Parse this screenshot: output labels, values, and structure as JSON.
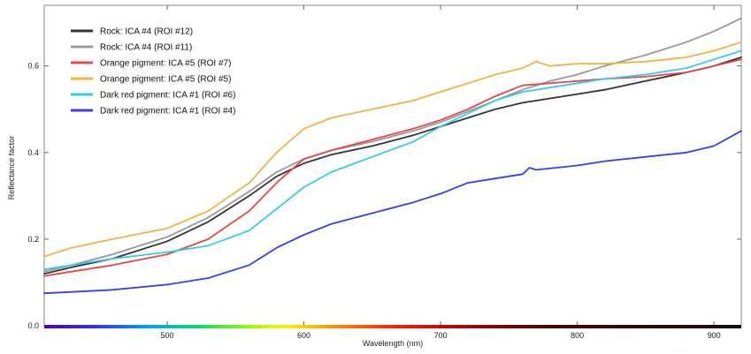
{
  "chart_data": {
    "type": "line",
    "title": "",
    "xlabel": "Wavelength (nm)",
    "ylabel": "Reflectance factor",
    "xlim": [
      410,
      920
    ],
    "ylim": [
      0.0,
      0.74
    ],
    "x_ticks": [
      500,
      600,
      700,
      800,
      900
    ],
    "x_tick_labels": [
      "500",
      "600",
      "700",
      "800",
      "900"
    ],
    "y_ticks": [
      0.0,
      0.2,
      0.4,
      0.6
    ],
    "y_tick_labels": [
      "0.0",
      "0.2",
      "0.4",
      "0.6"
    ],
    "grid": false,
    "legend_position": "top-left",
    "has_spectrum_bar": true,
    "series": [
      {
        "name": "Rock: ICA #4 (ROI #12)",
        "color": "#333333",
        "x": [
          410,
          430,
          460,
          500,
          530,
          560,
          580,
          600,
          620,
          650,
          680,
          700,
          720,
          740,
          760,
          780,
          800,
          820,
          850,
          880,
          900,
          920
        ],
        "y": [
          0.12,
          0.135,
          0.155,
          0.195,
          0.24,
          0.3,
          0.345,
          0.375,
          0.395,
          0.415,
          0.44,
          0.46,
          0.48,
          0.5,
          0.515,
          0.525,
          0.535,
          0.545,
          0.565,
          0.585,
          0.6,
          0.62
        ]
      },
      {
        "name": "Rock: ICA #4 (ROI #11)",
        "color": "#999999",
        "x": [
          410,
          430,
          460,
          500,
          530,
          560,
          580,
          600,
          620,
          650,
          680,
          700,
          720,
          740,
          760,
          780,
          800,
          820,
          850,
          880,
          900,
          920
        ],
        "y": [
          0.125,
          0.14,
          0.165,
          0.205,
          0.25,
          0.31,
          0.355,
          0.385,
          0.405,
          0.425,
          0.45,
          0.47,
          0.495,
          0.52,
          0.545,
          0.565,
          0.58,
          0.6,
          0.625,
          0.655,
          0.68,
          0.71
        ]
      },
      {
        "name": "Orange pigment: ICA #5 (ROI #7)",
        "color": "#ee4444",
        "x": [
          410,
          430,
          460,
          500,
          530,
          560,
          580,
          600,
          620,
          650,
          680,
          700,
          720,
          740,
          760,
          780,
          800,
          820,
          850,
          880,
          900,
          920
        ],
        "y": [
          0.115,
          0.125,
          0.14,
          0.165,
          0.2,
          0.265,
          0.33,
          0.385,
          0.405,
          0.43,
          0.455,
          0.475,
          0.5,
          0.53,
          0.555,
          0.56,
          0.565,
          0.57,
          0.575,
          0.585,
          0.6,
          0.615
        ]
      },
      {
        "name": "Orange pigment: ICA #5 (ROI #5)",
        "color": "#f5b041",
        "x": [
          410,
          430,
          460,
          500,
          530,
          560,
          580,
          600,
          620,
          650,
          680,
          700,
          720,
          740,
          760,
          770,
          780,
          800,
          820,
          850,
          880,
          900,
          920
        ],
        "y": [
          0.16,
          0.18,
          0.2,
          0.225,
          0.265,
          0.33,
          0.4,
          0.455,
          0.48,
          0.5,
          0.52,
          0.54,
          0.56,
          0.58,
          0.595,
          0.61,
          0.6,
          0.605,
          0.605,
          0.61,
          0.62,
          0.635,
          0.655
        ]
      },
      {
        "name": "Dark red pigment: ICA #1 (ROI #6)",
        "color": "#33ccf0",
        "x": [
          410,
          430,
          460,
          500,
          530,
          560,
          580,
          600,
          620,
          650,
          680,
          700,
          720,
          740,
          760,
          780,
          800,
          820,
          850,
          880,
          900,
          920
        ],
        "y": [
          0.13,
          0.14,
          0.155,
          0.17,
          0.185,
          0.22,
          0.27,
          0.32,
          0.355,
          0.39,
          0.425,
          0.46,
          0.49,
          0.52,
          0.54,
          0.55,
          0.56,
          0.57,
          0.58,
          0.595,
          0.615,
          0.635
        ]
      },
      {
        "name": "Dark red pigment: ICA #1 (ROI #4)",
        "color": "#3b3bf0",
        "x": [
          410,
          430,
          460,
          500,
          530,
          560,
          580,
          600,
          620,
          650,
          680,
          700,
          720,
          740,
          760,
          765,
          770,
          800,
          820,
          850,
          880,
          900,
          920
        ],
        "y": [
          0.075,
          0.078,
          0.083,
          0.095,
          0.11,
          0.14,
          0.18,
          0.21,
          0.235,
          0.26,
          0.285,
          0.305,
          0.33,
          0.34,
          0.35,
          0.365,
          0.36,
          0.37,
          0.38,
          0.39,
          0.4,
          0.415,
          0.45
        ]
      }
    ]
  }
}
